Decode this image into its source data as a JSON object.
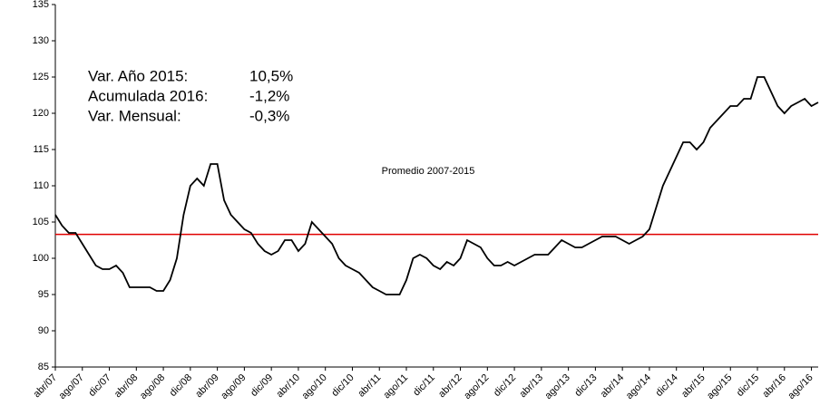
{
  "chart_data": {
    "type": "line",
    "categories": [
      "abr/07",
      null,
      null,
      null,
      "ago/07",
      null,
      null,
      null,
      "dic/07",
      null,
      null,
      null,
      "abr/08",
      null,
      null,
      null,
      "ago/08",
      null,
      null,
      null,
      "dic/08",
      null,
      null,
      null,
      "abr/09",
      null,
      null,
      null,
      "ago/09",
      null,
      null,
      null,
      "dic/09",
      null,
      null,
      null,
      "abr/10",
      null,
      null,
      null,
      "ago/10",
      null,
      null,
      null,
      "dic/10",
      null,
      null,
      null,
      "abr/11",
      null,
      null,
      null,
      "ago/11",
      null,
      null,
      null,
      "dic/11",
      null,
      null,
      null,
      "abr/12",
      null,
      null,
      null,
      "ago/12",
      null,
      null,
      null,
      "dic/12",
      null,
      null,
      null,
      "abr/13",
      null,
      null,
      null,
      "ago/13",
      null,
      null,
      null,
      "dic/13",
      null,
      null,
      null,
      "abr/14",
      null,
      null,
      null,
      "ago/14",
      null,
      null,
      null,
      "dic/14",
      null,
      null,
      null,
      "abr/15",
      null,
      null,
      null,
      "ago/15",
      null,
      null,
      null,
      "dic/15",
      null,
      null,
      null,
      "abr/16",
      null,
      null,
      null,
      "ago/16",
      null
    ],
    "series": [
      {
        "color": "#000000",
        "values": [
          106,
          104.5,
          103.5,
          103.5,
          102,
          100.5,
          99,
          98.5,
          98.5,
          99,
          98,
          96,
          96,
          96,
          96,
          95.5,
          95.5,
          97,
          100,
          106,
          110,
          111,
          110,
          113,
          113,
          108,
          106,
          105,
          104,
          103.5,
          102,
          101,
          100.5,
          101,
          102.5,
          102.5,
          101,
          102,
          105,
          104,
          103,
          102,
          100,
          99,
          98.5,
          98,
          97,
          96,
          95.5,
          95,
          95,
          95,
          97,
          100,
          100.5,
          100,
          99,
          98.5,
          99.5,
          99,
          100,
          102.5,
          102,
          101.5,
          100,
          99,
          99,
          99.5,
          99,
          99.5,
          100,
          100.5,
          100.5,
          100.5,
          101.5,
          102.5,
          102,
          101.5,
          101.5,
          102,
          102.5,
          103,
          103,
          103,
          102.5,
          102,
          102.5,
          103,
          104,
          107,
          110,
          112,
          114,
          116,
          116,
          115,
          116,
          118,
          119,
          120,
          121,
          121,
          122,
          122,
          125,
          125,
          123,
          121,
          120,
          121,
          121.5,
          122,
          121,
          121.5
        ]
      }
    ],
    "reference": {
      "value": 103.3,
      "label": "Promedio 2007-2015",
      "color": "#e00000"
    },
    "annotations": [
      {
        "label": "Var. Año 2015:",
        "value": "10,5%"
      },
      {
        "label": "Acumulada 2016:",
        "value": "-1,2%"
      },
      {
        "label": "Var. Mensual:",
        "value": "-0,3%"
      }
    ],
    "ylim": [
      85,
      135
    ],
    "yticks": [
      85,
      90,
      95,
      100,
      105,
      110,
      115,
      120,
      125,
      130,
      135
    ]
  }
}
